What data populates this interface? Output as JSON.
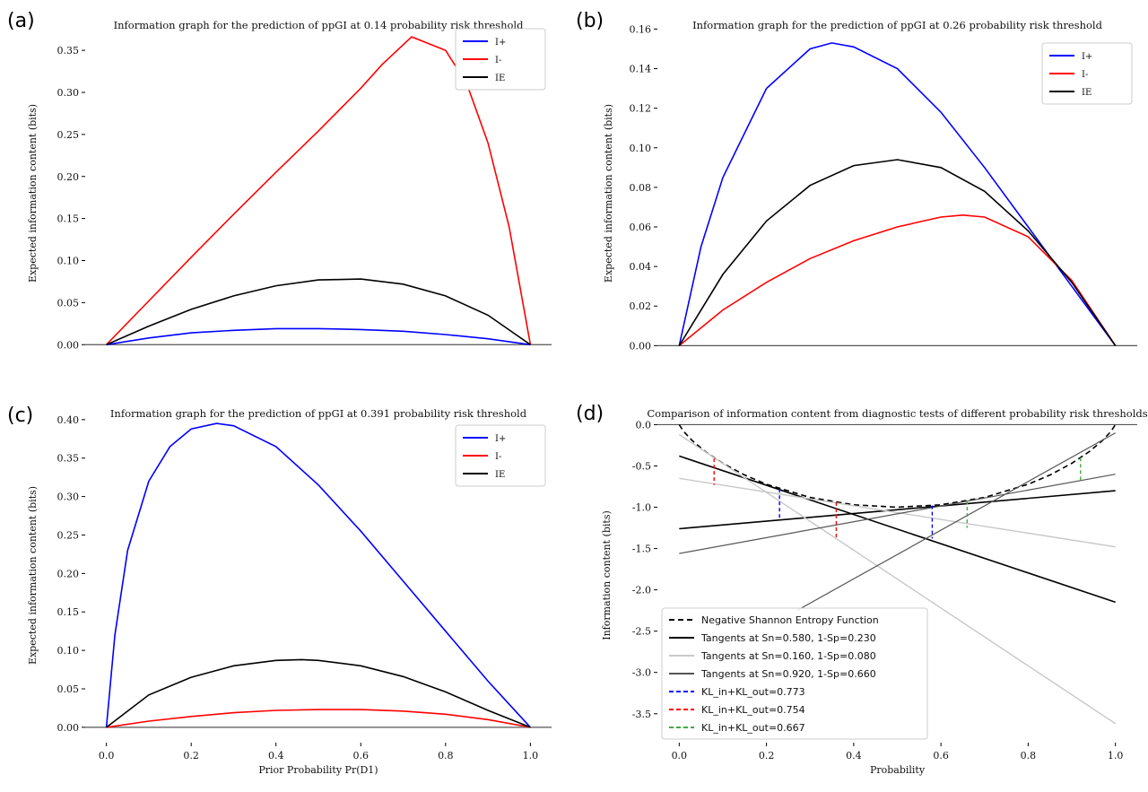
{
  "chart_data": [
    {
      "id": "a",
      "panel_label": "(a)",
      "type": "line",
      "title": "Information graph for the prediction of ppGI at 0.14 probability risk threshold",
      "xlabel": "",
      "ylabel": "Expected information content (bits)",
      "xlim": [
        -0.05,
        1.05
      ],
      "ylim": [
        -0.02,
        0.38
      ],
      "xticks": [],
      "yticks": [
        0.0,
        0.05,
        0.1,
        0.15,
        0.2,
        0.25,
        0.3,
        0.35
      ],
      "ytick_labels": [
        "0.00",
        "0.05",
        "0.10",
        "0.15",
        "0.20",
        "0.25",
        "0.30",
        "0.35"
      ],
      "legend_position": "top-right",
      "series": [
        {
          "name": "I+",
          "color": "#0000ff",
          "x": [
            0,
            0.1,
            0.2,
            0.3,
            0.4,
            0.5,
            0.6,
            0.7,
            0.8,
            0.9,
            1.0
          ],
          "y": [
            0,
            0.008,
            0.014,
            0.017,
            0.019,
            0.019,
            0.018,
            0.016,
            0.012,
            0.007,
            0
          ]
        },
        {
          "name": "I-",
          "color": "#ff0000",
          "x": [
            0,
            0.1,
            0.2,
            0.3,
            0.4,
            0.5,
            0.6,
            0.65,
            0.72,
            0.8,
            0.85,
            0.9,
            0.95,
            1.0
          ],
          "y": [
            0,
            0.052,
            0.104,
            0.155,
            0.205,
            0.254,
            0.305,
            0.333,
            0.366,
            0.35,
            0.31,
            0.24,
            0.14,
            0
          ]
        },
        {
          "name": "IE",
          "color": "#000000",
          "x": [
            0,
            0.1,
            0.2,
            0.3,
            0.4,
            0.5,
            0.6,
            0.7,
            0.8,
            0.9,
            1.0
          ],
          "y": [
            0,
            0.022,
            0.042,
            0.058,
            0.07,
            0.077,
            0.078,
            0.072,
            0.058,
            0.035,
            0
          ]
        }
      ]
    },
    {
      "id": "b",
      "panel_label": "(b)",
      "type": "line",
      "title": "Information graph for the prediction of ppGI at 0.26 probability risk threshold",
      "xlabel": "",
      "ylabel": "Expected information content (bits)",
      "xlim": [
        -0.05,
        1.05
      ],
      "ylim": [
        -0.008,
        0.162
      ],
      "xticks": [],
      "yticks": [
        0.0,
        0.02,
        0.04,
        0.06,
        0.08,
        0.1,
        0.12,
        0.14,
        0.16
      ],
      "ytick_labels": [
        "0.00",
        "0.02",
        "0.04",
        "0.06",
        "0.08",
        "0.10",
        "0.12",
        "0.14",
        "0.16"
      ],
      "legend_position": "top-right",
      "series": [
        {
          "name": "I+",
          "color": "#0000ff",
          "x": [
            0,
            0.05,
            0.1,
            0.2,
            0.3,
            0.35,
            0.4,
            0.5,
            0.6,
            0.7,
            0.8,
            0.9,
            1.0
          ],
          "y": [
            0,
            0.05,
            0.085,
            0.13,
            0.15,
            0.153,
            0.151,
            0.14,
            0.118,
            0.09,
            0.06,
            0.03,
            0
          ]
        },
        {
          "name": "I-",
          "color": "#ff0000",
          "x": [
            0,
            0.1,
            0.2,
            0.3,
            0.4,
            0.5,
            0.6,
            0.65,
            0.7,
            0.8,
            0.9,
            1.0
          ],
          "y": [
            0,
            0.018,
            0.032,
            0.044,
            0.053,
            0.06,
            0.065,
            0.066,
            0.065,
            0.055,
            0.033,
            0
          ]
        },
        {
          "name": "IE",
          "color": "#000000",
          "x": [
            0,
            0.1,
            0.2,
            0.3,
            0.4,
            0.5,
            0.6,
            0.7,
            0.8,
            0.9,
            1.0
          ],
          "y": [
            0,
            0.036,
            0.063,
            0.081,
            0.091,
            0.094,
            0.09,
            0.078,
            0.058,
            0.032,
            0
          ]
        }
      ]
    },
    {
      "id": "c",
      "panel_label": "(c)",
      "type": "line",
      "title": "Information graph for the prediction of ppGI at 0.391 probability risk threshold",
      "xlabel": "Prior Probability Pr(D1)",
      "ylabel": "Expected information content (bits)",
      "xlim": [
        -0.05,
        1.05
      ],
      "ylim": [
        -0.02,
        0.415
      ],
      "xticks": [
        0.0,
        0.2,
        0.4,
        0.6,
        0.8,
        1.0
      ],
      "xtick_labels": [
        "0.0",
        "0.2",
        "0.4",
        "0.6",
        "0.8",
        "1.0"
      ],
      "yticks": [
        0.0,
        0.05,
        0.1,
        0.15,
        0.2,
        0.25,
        0.3,
        0.35,
        0.4
      ],
      "ytick_labels": [
        "0.00",
        "0.05",
        "0.10",
        "0.15",
        "0.20",
        "0.25",
        "0.30",
        "0.35",
        "0.40"
      ],
      "legend_position": "top-right",
      "series": [
        {
          "name": "I+",
          "color": "#0000ff",
          "x": [
            0,
            0.02,
            0.05,
            0.1,
            0.15,
            0.2,
            0.26,
            0.3,
            0.4,
            0.5,
            0.6,
            0.7,
            0.8,
            0.9,
            1.0
          ],
          "y": [
            0,
            0.12,
            0.23,
            0.32,
            0.365,
            0.388,
            0.395,
            0.392,
            0.365,
            0.315,
            0.255,
            0.19,
            0.125,
            0.06,
            0
          ]
        },
        {
          "name": "I-",
          "color": "#ff0000",
          "x": [
            0,
            0.1,
            0.2,
            0.3,
            0.4,
            0.5,
            0.6,
            0.7,
            0.8,
            0.9,
            1.0
          ],
          "y": [
            0,
            0.008,
            0.014,
            0.019,
            0.022,
            0.023,
            0.023,
            0.021,
            0.017,
            0.01,
            0
          ]
        },
        {
          "name": "IE",
          "color": "#000000",
          "x": [
            0,
            0.1,
            0.2,
            0.3,
            0.4,
            0.46,
            0.5,
            0.6,
            0.7,
            0.8,
            0.9,
            1.0
          ],
          "y": [
            0,
            0.042,
            0.065,
            0.08,
            0.087,
            0.088,
            0.087,
            0.08,
            0.066,
            0.046,
            0.022,
            0
          ]
        }
      ]
    },
    {
      "id": "d",
      "panel_label": "(d)",
      "type": "line",
      "title": "Comparison of information content from diagnostic tests of different probability risk thresholds",
      "xlabel": "Probability",
      "ylabel": "Information content (bits)",
      "xlim": [
        -0.05,
        1.05
      ],
      "ylim": [
        -3.85,
        0.2
      ],
      "xticks": [
        0.0,
        0.2,
        0.4,
        0.6,
        0.8,
        1.0
      ],
      "xtick_labels": [
        "0.0",
        "0.2",
        "0.4",
        "0.6",
        "0.8",
        "1.0"
      ],
      "yticks": [
        0.0,
        -0.5,
        -1.0,
        -1.5,
        -2.0,
        -2.5,
        -3.0,
        -3.5
      ],
      "ytick_labels": [
        "0.0",
        "-0.5",
        "-1.0",
        "-1.5",
        "-2.0",
        "-2.5",
        "-3.0",
        "-3.5"
      ],
      "legend_position": "lower-left",
      "lines": [
        {
          "name": "Negative Shannon Entropy Function",
          "color": "#000000",
          "dash": "6,4",
          "width": 1.6,
          "x": [
            0,
            0.01,
            0.03,
            0.06,
            0.1,
            0.15,
            0.2,
            0.3,
            0.4,
            0.5,
            0.6,
            0.7,
            0.8,
            0.85,
            0.9,
            0.94,
            0.97,
            0.99,
            1.0
          ],
          "y": [
            0,
            -0.081,
            -0.194,
            -0.327,
            -0.469,
            -0.61,
            -0.722,
            -0.881,
            -0.971,
            -1.0,
            -0.971,
            -0.881,
            -0.722,
            -0.61,
            -0.469,
            -0.327,
            -0.194,
            -0.081,
            0
          ]
        },
        {
          "name": "Tangents at Sn=0.580, 1-Sp=0.230",
          "color": "#000000",
          "dash": "",
          "width": 1.6,
          "x": [
            0,
            1.0
          ],
          "y": [
            -1.26,
            -0.8
          ]
        },
        {
          "name": "",
          "color": "#000000",
          "dash": "",
          "width": 1.6,
          "x": [
            0,
            1.0
          ],
          "y": [
            -0.38,
            -2.15
          ]
        },
        {
          "name": "Tangents at Sn=0.160, 1-Sp=0.080",
          "color": "#c8c8c8",
          "dash": "",
          "width": 1.4,
          "x": [
            0,
            1.0
          ],
          "y": [
            -0.65,
            -1.48
          ]
        },
        {
          "name": "",
          "color": "#c8c8c8",
          "dash": "",
          "width": 1.4,
          "x": [
            0,
            1.0
          ],
          "y": [
            -0.12,
            -3.62
          ]
        },
        {
          "name": "Tangents at Sn=0.920, 1-Sp=0.660",
          "color": "#555555",
          "dash": "",
          "width": 1.2,
          "x": [
            0,
            1.0
          ],
          "y": [
            -1.56,
            -0.6
          ]
        },
        {
          "name": "",
          "color": "#555555",
          "dash": "",
          "width": 1.2,
          "x": [
            0.27,
            1.0
          ],
          "y": [
            -2.25,
            -0.1
          ]
        },
        {
          "name": "KL_in+KL_out=0.773",
          "color": "#0000ff",
          "dash": "5,3",
          "width": 1.4,
          "x": [],
          "y": []
        },
        {
          "name": "KL_in+KL_out=0.754",
          "color": "#ff0000",
          "dash": "5,3",
          "width": 1.4,
          "x": [],
          "y": []
        },
        {
          "name": "KL_in+KL_out=0.667",
          "color": "#44aa44",
          "dash": "5,3",
          "width": 1.4,
          "x": [],
          "y": []
        }
      ],
      "kl_segments": [
        {
          "color": "#0000ff",
          "x": 0.23,
          "y1": -0.78,
          "y2": -1.15
        },
        {
          "color": "#0000ff",
          "x": 0.58,
          "y1": -0.98,
          "y2": -1.38
        },
        {
          "color": "#ff0000",
          "x": 0.08,
          "y1": -0.41,
          "y2": -0.73
        },
        {
          "color": "#ff0000",
          "x": 0.36,
          "y1": -0.94,
          "y2": -1.38
        },
        {
          "color": "#44aa44",
          "x": 0.66,
          "y1": -0.92,
          "y2": -1.25
        },
        {
          "color": "#44aa44",
          "x": 0.92,
          "y1": -0.4,
          "y2": -0.67
        }
      ]
    }
  ]
}
